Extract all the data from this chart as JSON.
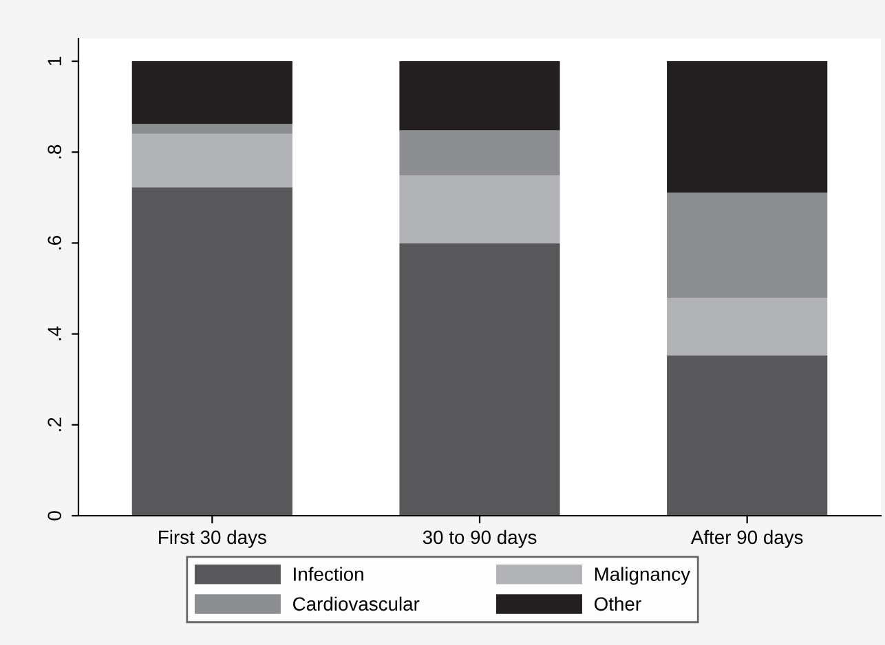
{
  "chart_data": {
    "type": "bar",
    "stacked": true,
    "categories": [
      "First 30 days",
      "30 to 90 days",
      "After 90 days"
    ],
    "series": [
      {
        "name": "Infection",
        "color": "#58585a",
        "values": [
          0.723,
          0.599,
          0.353
        ]
      },
      {
        "name": "Malignancy",
        "color": "#b2b3b6",
        "values": [
          0.117,
          0.149,
          0.126
        ]
      },
      {
        "name": "Cardiovascular",
        "color": "#8d8e91",
        "values": [
          0.022,
          0.1,
          0.232
        ]
      },
      {
        "name": "Other",
        "color": "#231f20",
        "values": [
          0.138,
          0.152,
          0.289
        ]
      }
    ],
    "ylim": [
      0,
      1.05
    ],
    "yticks": [
      {
        "value": 0,
        "label": "0"
      },
      {
        "value": 0.2,
        "label": ".2"
      },
      {
        "value": 0.4,
        "label": ".4"
      },
      {
        "value": 0.6,
        "label": ".6"
      },
      {
        "value": 0.8,
        "label": ".8"
      },
      {
        "value": 1,
        "label": "1"
      }
    ],
    "grid": false,
    "legend": "bottom"
  }
}
